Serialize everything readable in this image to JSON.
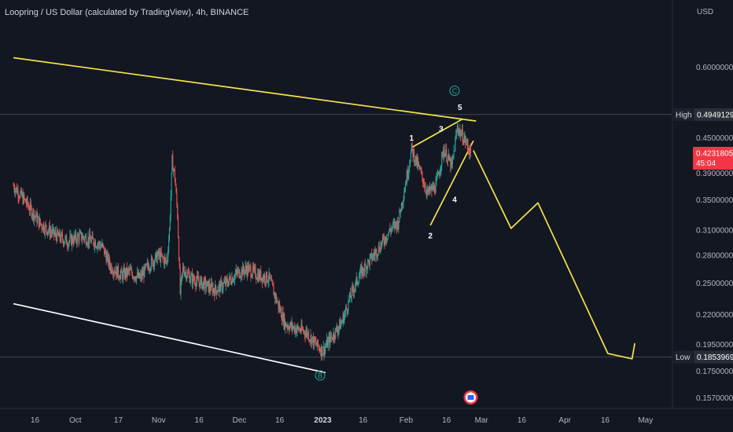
{
  "title": "Loopring / US Dollar (calculated by TradingView), 4h, BINANCE",
  "chart_data": {
    "type": "candlestick",
    "currency": "USD",
    "y_scale": "log",
    "ylim": [
      0.1505,
      0.72
    ],
    "y_ticks": [
      "0.60000000",
      "0.45000000",
      "0.39000000",
      "0.35000000",
      "0.31000000",
      "0.28000000",
      "0.25000000",
      "0.22000000",
      "0.19500000",
      "0.17500000",
      "0.15700000"
    ],
    "x_ticks": [
      "16",
      "Oct",
      "17",
      "Nov",
      "16",
      "Dec",
      "16",
      "2023",
      "16",
      "Feb",
      "16",
      "Mar",
      "16",
      "Apr",
      "16",
      "May"
    ],
    "high": {
      "label": "High",
      "value": "0.49491297"
    },
    "low": {
      "label": "Low",
      "value": "0.18539697"
    },
    "last": {
      "value": "0.42318054",
      "countdown": "45:04"
    },
    "price_path": [
      [
        "2022-09-08",
        0.371
      ],
      [
        "2022-09-13",
        0.345
      ],
      [
        "2022-09-18",
        0.318
      ],
      [
        "2022-09-23",
        0.305
      ],
      [
        "2022-09-28",
        0.296
      ],
      [
        "2022-10-03",
        0.302
      ],
      [
        "2022-10-08",
        0.296
      ],
      [
        "2022-10-11",
        0.29
      ],
      [
        "2022-10-14",
        0.268
      ],
      [
        "2022-10-18",
        0.258
      ],
      [
        "2022-10-21",
        0.262
      ],
      [
        "2022-10-25",
        0.255
      ],
      [
        "2022-10-28",
        0.268
      ],
      [
        "2022-11-01",
        0.28
      ],
      [
        "2022-11-04",
        0.272
      ],
      [
        "2022-11-05",
        0.31
      ],
      [
        "2022-11-06",
        0.41
      ],
      [
        "2022-11-07",
        0.385
      ],
      [
        "2022-11-08",
        0.33
      ],
      [
        "2022-11-09",
        0.24
      ],
      [
        "2022-11-10",
        0.265
      ],
      [
        "2022-11-13",
        0.255
      ],
      [
        "2022-11-17",
        0.25
      ],
      [
        "2022-11-22",
        0.243
      ],
      [
        "2022-11-26",
        0.25
      ],
      [
        "2022-11-30",
        0.26
      ],
      [
        "2022-12-04",
        0.265
      ],
      [
        "2022-12-08",
        0.258
      ],
      [
        "2022-12-12",
        0.255
      ],
      [
        "2022-12-15",
        0.232
      ],
      [
        "2022-12-18",
        0.212
      ],
      [
        "2022-12-22",
        0.208
      ],
      [
        "2022-12-26",
        0.205
      ],
      [
        "2022-12-29",
        0.196
      ],
      [
        "2023-01-01",
        0.19
      ],
      [
        "2023-01-04",
        0.2
      ],
      [
        "2023-01-08",
        0.213
      ],
      [
        "2023-01-12",
        0.242
      ],
      [
        "2023-01-15",
        0.26
      ],
      [
        "2023-01-18",
        0.272
      ],
      [
        "2023-01-22",
        0.289
      ],
      [
        "2023-01-26",
        0.31
      ],
      [
        "2023-01-29",
        0.32
      ],
      [
        "2023-02-01",
        0.38
      ],
      [
        "2023-02-03",
        0.43
      ],
      [
        "2023-02-06",
        0.395
      ],
      [
        "2023-02-09",
        0.36
      ],
      [
        "2023-02-12",
        0.37
      ],
      [
        "2023-02-15",
        0.43
      ],
      [
        "2023-02-18",
        0.4
      ],
      [
        "2023-02-20",
        0.47
      ],
      [
        "2023-02-23",
        0.445
      ],
      [
        "2023-02-25",
        0.423
      ]
    ],
    "trendlines": [
      {
        "name": "upper-resistance",
        "color": "#f5e34a",
        "points": [
          [
            "2022-09-08",
            0.623
          ],
          [
            "2023-02-27",
            0.482
          ]
        ]
      },
      {
        "name": "lower-support",
        "color": "#ffffff",
        "points": [
          [
            "2022-09-08",
            0.23
          ],
          [
            "2023-01-02",
            0.174
          ]
        ]
      },
      {
        "name": "wedge-upper",
        "color": "#f5e34a",
        "points": [
          [
            "2023-02-03",
            0.433
          ],
          [
            "2023-02-22",
            0.486
          ]
        ]
      },
      {
        "name": "wedge-lower",
        "color": "#f5e34a",
        "points": [
          [
            "2023-02-10",
            0.316
          ],
          [
            "2023-02-26",
            0.445
          ]
        ]
      }
    ],
    "projection": {
      "color": "#f5e34a",
      "points": [
        [
          "2023-02-26",
          0.428
        ],
        [
          "2023-03-12",
          0.312
        ],
        [
          "2023-03-22",
          0.346
        ],
        [
          "2023-04-17",
          0.188
        ],
        [
          "2023-04-26",
          0.184
        ],
        [
          "2023-04-27",
          0.196
        ]
      ]
    },
    "wave_labels": [
      {
        "text": "1",
        "date": "2023-02-03",
        "price": 0.45
      },
      {
        "text": "2",
        "date": "2023-02-10",
        "price": 0.303
      },
      {
        "text": "3",
        "date": "2023-02-14",
        "price": 0.467
      },
      {
        "text": "4",
        "date": "2023-02-19",
        "price": 0.351
      },
      {
        "text": "5",
        "date": "2023-02-21",
        "price": 0.51
      },
      {
        "text": "C",
        "date": "2023-02-19",
        "price": 0.545
      },
      {
        "text": "B",
        "date": "2022-12-31",
        "price": 0.172
      }
    ]
  }
}
